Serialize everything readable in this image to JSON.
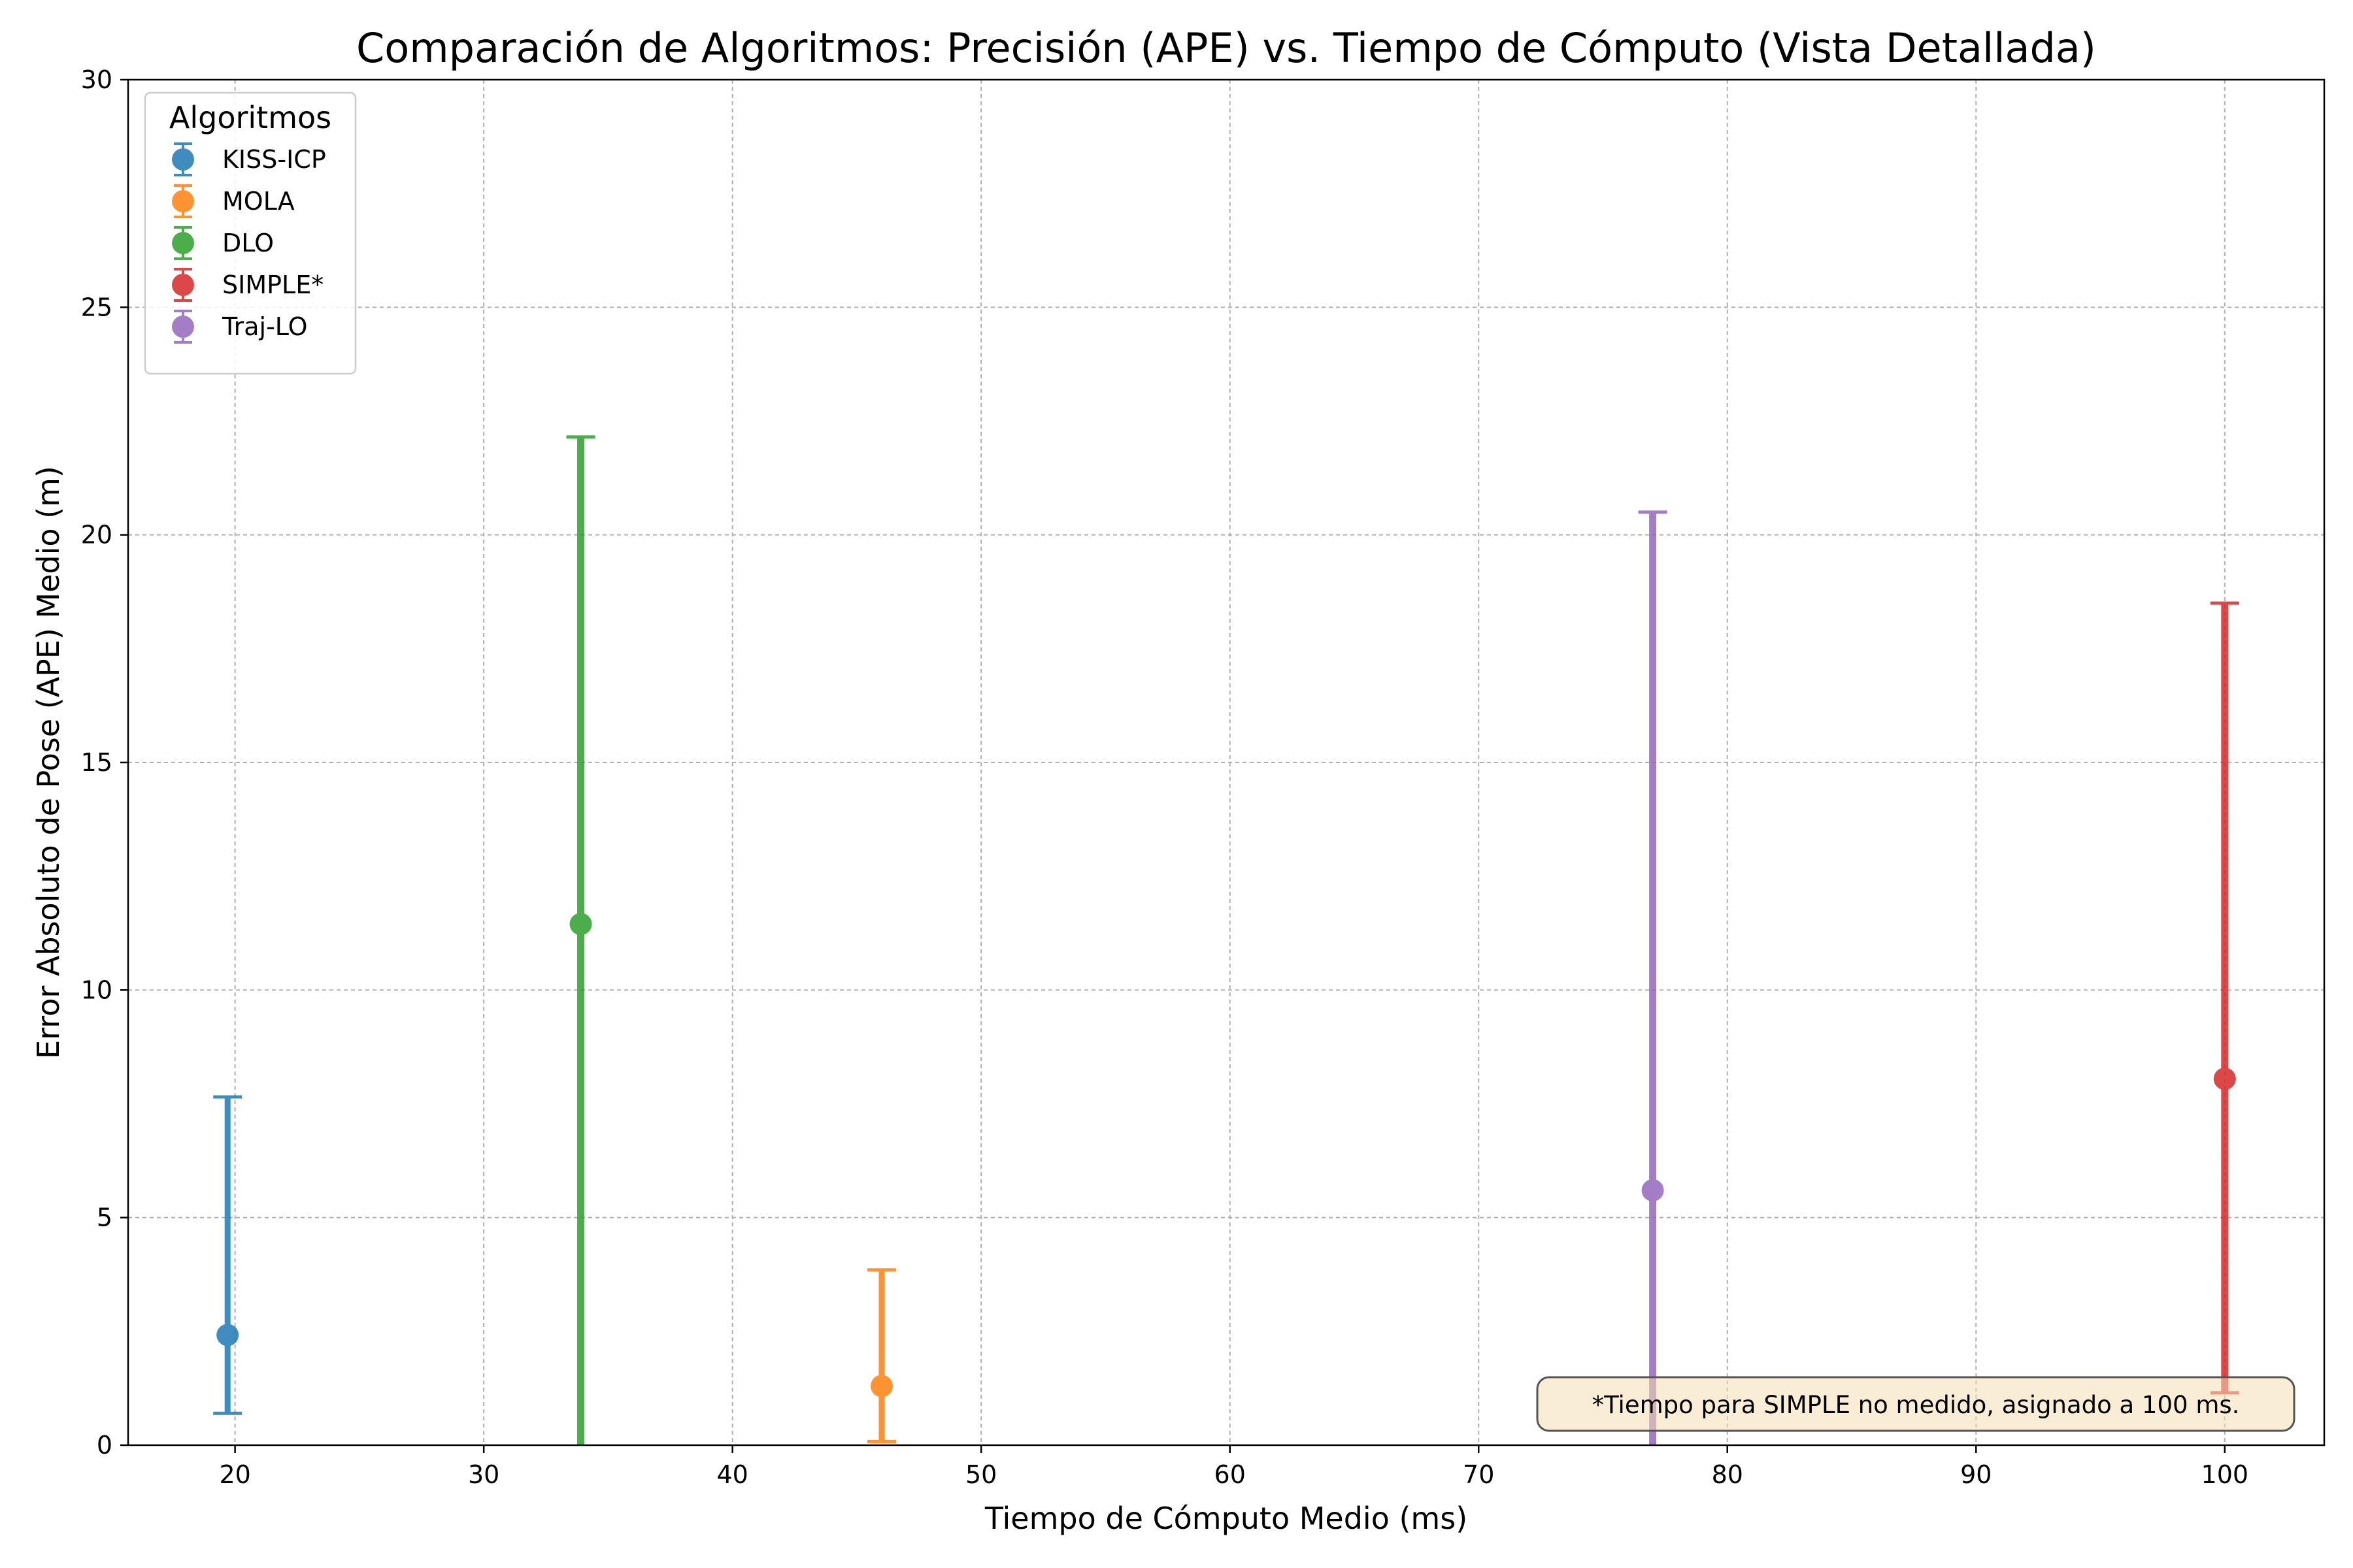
{
  "chart_data": {
    "type": "scatter",
    "title": "Comparación de Algoritmos: Precisión (APE) vs. Tiempo de Cómputo (Vista Detallada)",
    "xlabel": "Tiempo de Cómputo Medio (ms)",
    "ylabel": "Error Absoluto de Pose (APE) Medio (m)",
    "xlim": [
      15.7,
      104.0
    ],
    "ylim": [
      0,
      30
    ],
    "xticks": [
      20,
      30,
      40,
      50,
      60,
      70,
      80,
      90,
      100
    ],
    "yticks": [
      0,
      5,
      10,
      15,
      20,
      25,
      30
    ],
    "grid": true,
    "legend": {
      "title": "Algoritmos",
      "placement": "top-left"
    },
    "series": [
      {
        "name": "KISS-ICP",
        "color": "#1f77b4",
        "x": 19.7,
        "y": 2.42,
        "y_low": 0.7,
        "y_high": 7.65,
        "thick": false
      },
      {
        "name": "MOLA",
        "color": "#ff7f0e",
        "x": 46.0,
        "y": 1.3,
        "y_low": 0.08,
        "y_high": 3.85,
        "thick": false
      },
      {
        "name": "DLO",
        "color": "#2ca02c",
        "x": 33.9,
        "y": 11.45,
        "y_low": 0.0,
        "y_high": 22.15,
        "thick": true
      },
      {
        "name": "SIMPLE*",
        "color": "#d62728",
        "x": 100.0,
        "y": 8.05,
        "y_low": 1.15,
        "y_high": 18.5,
        "thick": true
      },
      {
        "name": "Traj-LO",
        "color": "#9467bd",
        "x": 77.0,
        "y": 5.6,
        "y_low": 0.0,
        "y_high": 20.5,
        "thick": true
      }
    ],
    "annotation": "*Tiempo para SIMPLE no medido, asignado a 100 ms."
  }
}
